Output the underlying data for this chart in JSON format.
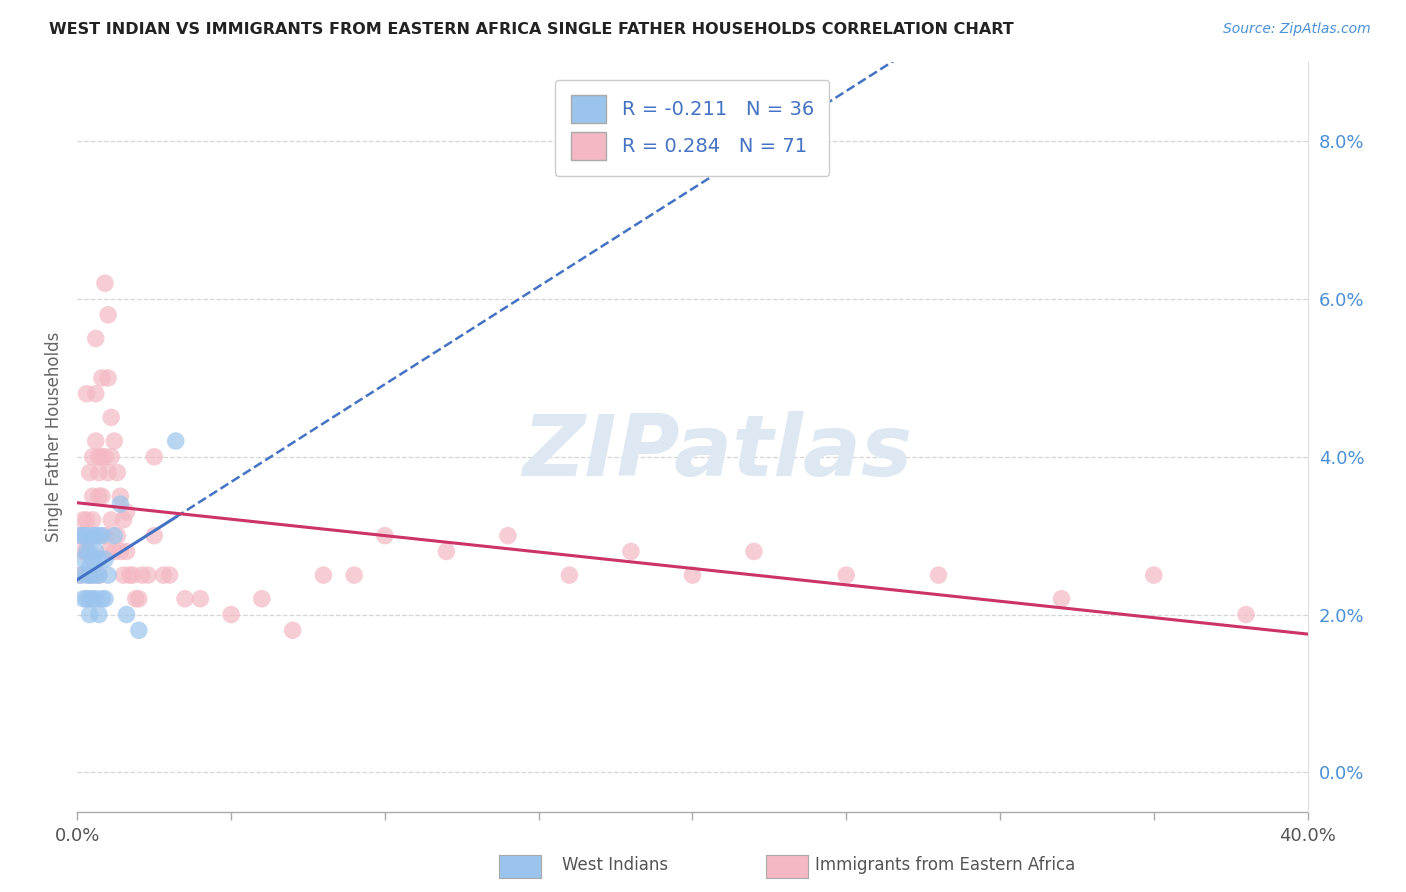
{
  "title": "WEST INDIAN VS IMMIGRANTS FROM EASTERN AFRICA SINGLE FATHER HOUSEHOLDS CORRELATION CHART",
  "source": "Source: ZipAtlas.com",
  "ylabel": "Single Father Households",
  "xlim": [
    0.0,
    0.4
  ],
  "ylim": [
    -0.005,
    0.09
  ],
  "x_ticks": [
    0.0,
    0.05,
    0.1,
    0.15,
    0.2,
    0.25,
    0.3,
    0.35,
    0.4
  ],
  "y_ticks": [
    0.0,
    0.02,
    0.04,
    0.06,
    0.08
  ],
  "west_indians_x": [
    0.001,
    0.001,
    0.002,
    0.002,
    0.002,
    0.003,
    0.003,
    0.003,
    0.003,
    0.004,
    0.004,
    0.004,
    0.004,
    0.004,
    0.005,
    0.005,
    0.005,
    0.005,
    0.006,
    0.006,
    0.006,
    0.006,
    0.007,
    0.007,
    0.007,
    0.007,
    0.008,
    0.008,
    0.009,
    0.009,
    0.01,
    0.012,
    0.014,
    0.016,
    0.02,
    0.032
  ],
  "west_indians_y": [
    0.03,
    0.025,
    0.03,
    0.027,
    0.022,
    0.03,
    0.028,
    0.025,
    0.022,
    0.028,
    0.026,
    0.022,
    0.025,
    0.02,
    0.03,
    0.027,
    0.025,
    0.022,
    0.03,
    0.028,
    0.025,
    0.022,
    0.03,
    0.027,
    0.025,
    0.02,
    0.03,
    0.022,
    0.027,
    0.022,
    0.025,
    0.03,
    0.034,
    0.02,
    0.018,
    0.042
  ],
  "eastern_africa_x": [
    0.001,
    0.001,
    0.002,
    0.002,
    0.003,
    0.003,
    0.003,
    0.004,
    0.004,
    0.005,
    0.005,
    0.005,
    0.006,
    0.006,
    0.006,
    0.007,
    0.007,
    0.007,
    0.007,
    0.008,
    0.008,
    0.008,
    0.009,
    0.009,
    0.009,
    0.01,
    0.01,
    0.01,
    0.01,
    0.011,
    0.011,
    0.011,
    0.012,
    0.012,
    0.013,
    0.013,
    0.014,
    0.014,
    0.015,
    0.015,
    0.016,
    0.016,
    0.017,
    0.018,
    0.019,
    0.02,
    0.021,
    0.023,
    0.025,
    0.025,
    0.028,
    0.03,
    0.035,
    0.04,
    0.05,
    0.06,
    0.07,
    0.08,
    0.09,
    0.1,
    0.12,
    0.14,
    0.16,
    0.18,
    0.2,
    0.22,
    0.25,
    0.28,
    0.32,
    0.35,
    0.38
  ],
  "eastern_africa_y": [
    0.03,
    0.025,
    0.032,
    0.028,
    0.048,
    0.032,
    0.028,
    0.038,
    0.025,
    0.035,
    0.04,
    0.032,
    0.042,
    0.048,
    0.055,
    0.04,
    0.038,
    0.035,
    0.025,
    0.05,
    0.04,
    0.035,
    0.062,
    0.04,
    0.03,
    0.058,
    0.05,
    0.038,
    0.028,
    0.045,
    0.04,
    0.032,
    0.042,
    0.028,
    0.038,
    0.03,
    0.035,
    0.028,
    0.032,
    0.025,
    0.033,
    0.028,
    0.025,
    0.025,
    0.022,
    0.022,
    0.025,
    0.025,
    0.04,
    0.03,
    0.025,
    0.025,
    0.022,
    0.022,
    0.02,
    0.022,
    0.018,
    0.025,
    0.025,
    0.03,
    0.028,
    0.03,
    0.025,
    0.028,
    0.025,
    0.028,
    0.025,
    0.025,
    0.022,
    0.025,
    0.02
  ],
  "west_indians_R": -0.211,
  "west_indians_N": 36,
  "eastern_africa_R": 0.284,
  "eastern_africa_N": 71,
  "blue_dot_color": "#9bc4ed",
  "pink_dot_color": "#f4b8c4",
  "blue_line_color": "#4472c4",
  "pink_line_color": "#cc3366",
  "background_color": "#ffffff",
  "grid_color": "#cccccc",
  "watermark_text": "ZIPatlas",
  "legend_label_blue": "R = -0.211   N = 36",
  "legend_label_pink": "R = 0.284   N = 71",
  "legend_text_color": "#4472c4",
  "bottom_legend_blue": "West Indians",
  "bottom_legend_pink": "Immigrants from Eastern Africa"
}
